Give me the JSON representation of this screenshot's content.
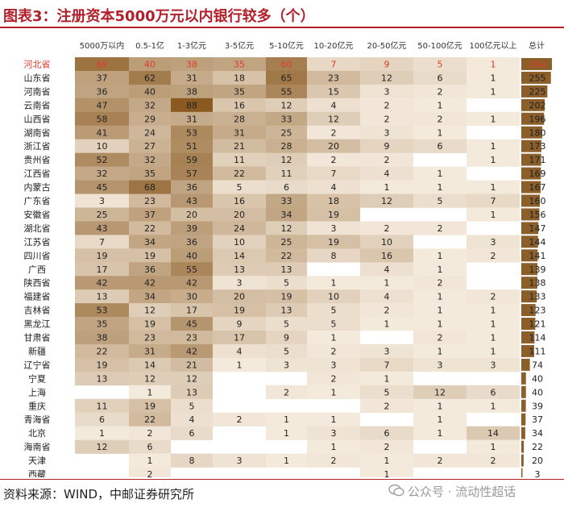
{
  "title": "图表3：注册资本5000万元以内银行较多（个）",
  "source": "资料来源：WIND，中邮证券研究所",
  "watermark": "公众号 · 流动性超话",
  "colors": {
    "accent": "#b1202b",
    "highlight_text": "#e03c2a",
    "heat_low": "#f8efe3",
    "heat_high": "#8a5a21",
    "total_bar": "#8b5e2a"
  },
  "chart_data": {
    "type": "heatmap",
    "title": "图表3：注册资本5000万元以内银行较多（个）",
    "columns": [
      "5000万以内",
      "0.5-1亿",
      "1-3亿元",
      "3-5亿元",
      "5-10亿元",
      "10-20亿元",
      "20-50亿元",
      "50-100亿元",
      "100亿元以上",
      "总计"
    ],
    "highlighted_row": "河北省",
    "rows": [
      {
        "name": "河北省",
        "values": [
          69,
          40,
          38,
          35,
          60,
          7,
          9,
          5,
          1
        ],
        "total": 264
      },
      {
        "name": "山东省",
        "values": [
          37,
          62,
          31,
          18,
          65,
          23,
          12,
          6,
          1
        ],
        "total": 255
      },
      {
        "name": "河南省",
        "values": [
          36,
          40,
          38,
          35,
          55,
          15,
          3,
          2,
          1
        ],
        "total": 225
      },
      {
        "name": "云南省",
        "values": [
          47,
          32,
          88,
          16,
          12,
          4,
          2,
          1,
          null
        ],
        "total": 202
      },
      {
        "name": "山西省",
        "values": [
          58,
          29,
          31,
          28,
          33,
          12,
          2,
          2,
          1
        ],
        "total": 196
      },
      {
        "name": "湖南省",
        "values": [
          41,
          24,
          53,
          31,
          25,
          2,
          3,
          1,
          null
        ],
        "total": 180
      },
      {
        "name": "浙江省",
        "values": [
          10,
          27,
          51,
          21,
          28,
          20,
          9,
          6,
          1
        ],
        "total": 173
      },
      {
        "name": "贵州省",
        "values": [
          52,
          32,
          59,
          11,
          12,
          2,
          2,
          null,
          1
        ],
        "total": 171
      },
      {
        "name": "江西省",
        "values": [
          32,
          35,
          57,
          22,
          11,
          7,
          4,
          1,
          null
        ],
        "total": 169
      },
      {
        "name": "内蒙古",
        "values": [
          45,
          68,
          36,
          5,
          6,
          4,
          1,
          1,
          1
        ],
        "total": 167
      },
      {
        "name": "广东省",
        "values": [
          3,
          23,
          43,
          16,
          33,
          18,
          12,
          5,
          7
        ],
        "total": 160
      },
      {
        "name": "安徽省",
        "values": [
          25,
          37,
          20,
          20,
          34,
          19,
          null,
          null,
          1
        ],
        "total": 156
      },
      {
        "name": "湖北省",
        "values": [
          43,
          22,
          39,
          24,
          12,
          3,
          2,
          2,
          null
        ],
        "total": 147
      },
      {
        "name": "江苏省",
        "values": [
          7,
          34,
          36,
          10,
          25,
          19,
          10,
          null,
          3
        ],
        "total": 144
      },
      {
        "name": "四川省",
        "values": [
          19,
          19,
          40,
          14,
          22,
          8,
          16,
          1,
          2
        ],
        "total": 141
      },
      {
        "name": "广西",
        "values": [
          17,
          36,
          55,
          13,
          13,
          null,
          4,
          1,
          null
        ],
        "total": 139
      },
      {
        "name": "陕西省",
        "values": [
          42,
          42,
          42,
          3,
          5,
          1,
          1,
          2,
          null
        ],
        "total": 138
      },
      {
        "name": "福建省",
        "values": [
          13,
          34,
          30,
          20,
          19,
          10,
          4,
          1,
          2
        ],
        "total": 133
      },
      {
        "name": "吉林省",
        "values": [
          53,
          12,
          17,
          19,
          13,
          5,
          2,
          1,
          1
        ],
        "total": 123
      },
      {
        "name": "黑龙江",
        "values": [
          35,
          19,
          45,
          9,
          5,
          5,
          1,
          1,
          1
        ],
        "total": 121
      },
      {
        "name": "甘肃省",
        "values": [
          38,
          23,
          23,
          17,
          9,
          1,
          null,
          2,
          1
        ],
        "total": 114
      },
      {
        "name": "新疆",
        "values": [
          22,
          31,
          42,
          4,
          5,
          2,
          3,
          1,
          1
        ],
        "total": 111
      },
      {
        "name": "辽宁省",
        "values": [
          19,
          14,
          21,
          1,
          3,
          3,
          7,
          3,
          3
        ],
        "total": 74
      },
      {
        "name": "宁夏",
        "values": [
          13,
          12,
          12,
          null,
          null,
          2,
          1,
          null,
          null
        ],
        "total": 40
      },
      {
        "name": "上海",
        "values": [
          null,
          1,
          13,
          null,
          2,
          1,
          5,
          12,
          6
        ],
        "total": 40
      },
      {
        "name": "重庆",
        "values": [
          11,
          19,
          5,
          null,
          null,
          null,
          2,
          1,
          1
        ],
        "total": 39
      },
      {
        "name": "青海省",
        "values": [
          6,
          22,
          4,
          2,
          1,
          1,
          null,
          1,
          null
        ],
        "total": 37
      },
      {
        "name": "北京",
        "values": [
          1,
          2,
          6,
          null,
          1,
          3,
          6,
          1,
          14
        ],
        "total": 34
      },
      {
        "name": "海南省",
        "values": [
          12,
          6,
          null,
          null,
          null,
          1,
          2,
          null,
          1
        ],
        "total": 22
      },
      {
        "name": "天津",
        "values": [
          null,
          1,
          8,
          3,
          1,
          2,
          1,
          2,
          2
        ],
        "total": 20
      },
      {
        "name": "西藏",
        "values": [
          null,
          2,
          null,
          null,
          null,
          null,
          1,
          null,
          null
        ],
        "total": 3
      }
    ]
  }
}
